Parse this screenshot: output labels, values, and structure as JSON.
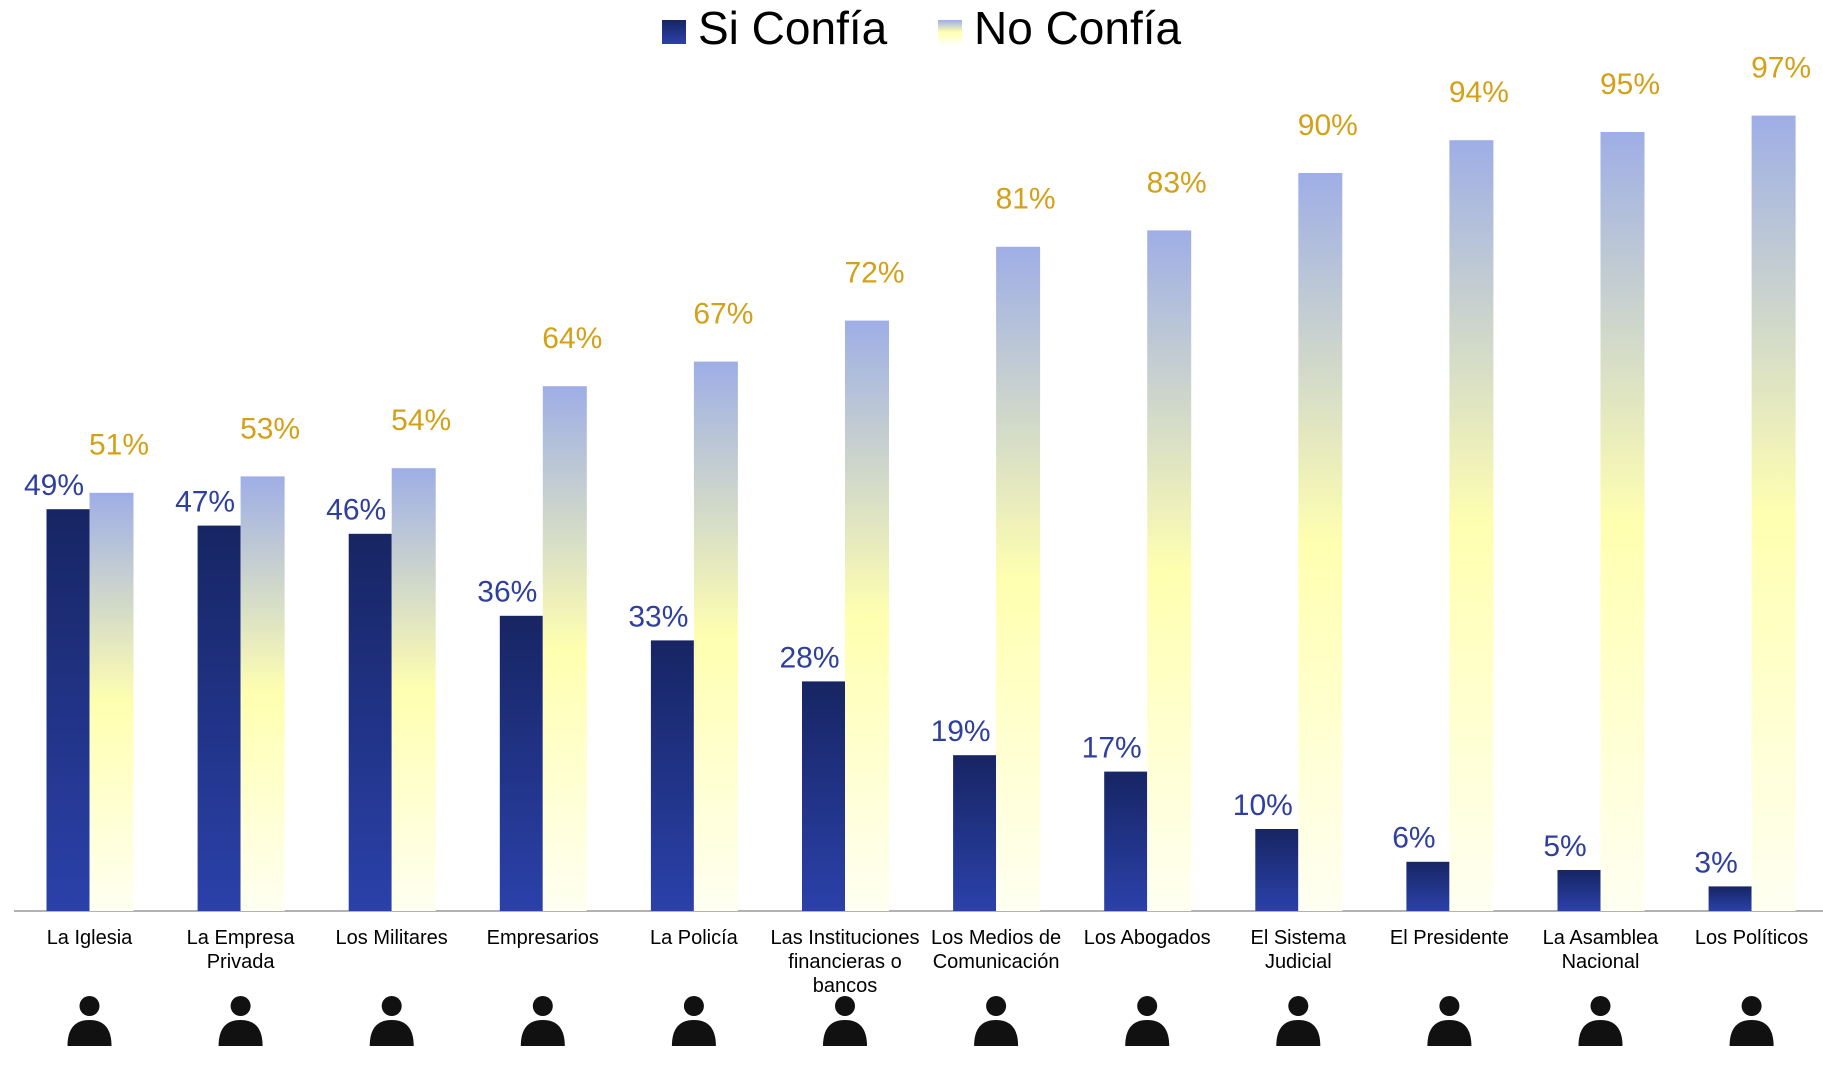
{
  "chart_data": {
    "type": "bar",
    "categories": [
      "La Iglesia",
      "La Empresa Privada",
      "Los Militares",
      "Empresarios",
      "La Policía",
      "Las Instituciones financieras o bancos",
      "Los Medios de Comunicación",
      "Los Abogados",
      "El Sistema Judicial",
      "El Presidente",
      "La Asamblea Nacional",
      "Los Políticos"
    ],
    "series": [
      {
        "name": "Si Confía",
        "color": "#1f2f85",
        "gradient": [
          "#172563",
          "#2b41aa"
        ],
        "label_color": "#2e3f9e",
        "values": [
          49,
          47,
          46,
          36,
          33,
          28,
          19,
          17,
          10,
          6,
          5,
          3
        ],
        "value_labels": [
          "49%",
          "47%",
          "46%",
          "36%",
          "33%",
          "28%",
          "19%",
          "17%",
          "10%",
          "6%",
          "5%",
          "3%"
        ]
      },
      {
        "name": "No Confía",
        "color": "#ffffb0",
        "gradient": [
          "#9eaee6",
          "#ffffb0",
          "#fffff2"
        ],
        "label_color": "#d4a017",
        "values": [
          51,
          53,
          54,
          64,
          67,
          72,
          81,
          83,
          90,
          94,
          95,
          97
        ],
        "value_labels": [
          "51%",
          "53%",
          "54%",
          "64%",
          "67%",
          "72%",
          "81%",
          "83%",
          "90%",
          "94%",
          "95%",
          "97%"
        ]
      }
    ],
    "legend": "top"
  }
}
